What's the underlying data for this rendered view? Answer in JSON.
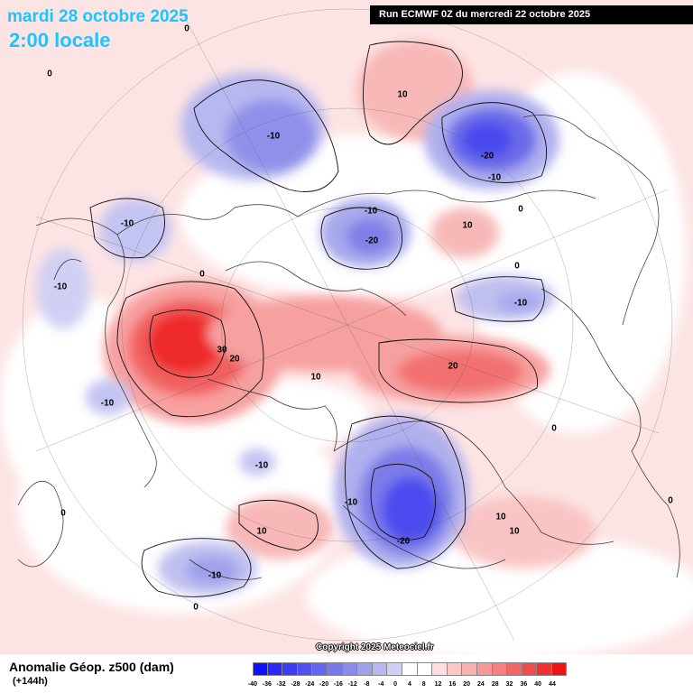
{
  "header": {
    "date_title": "mardi 28 octobre 2025",
    "time_title": "2:00 locale",
    "run_info": "Run ECMWF 0Z du mercredi 22 octobre 2025"
  },
  "footer": {
    "title": "Anomalie Géop. z500 (dam)",
    "subtitle": "(+144h)",
    "copyright": "Copyright 2025 Meteociel.fr"
  },
  "legend": {
    "ticks": [
      "-40",
      "-36",
      "-32",
      "-28",
      "-24",
      "-20",
      "-16",
      "-12",
      "-8",
      "-4",
      "0",
      "4",
      "8",
      "12",
      "16",
      "20",
      "24",
      "28",
      "32",
      "36",
      "40",
      "44"
    ],
    "colors": [
      "#1010ff",
      "#2828ff",
      "#3c3cf4",
      "#5050f0",
      "#6464ec",
      "#7878ea",
      "#8c8ce8",
      "#a0a0ea",
      "#b8b8ee",
      "#d0d0f4",
      "#ffffff",
      "#ffffff",
      "#fcdede",
      "#fac8c8",
      "#f8b0b0",
      "#f69898",
      "#f48080",
      "#f26666",
      "#f04c4c",
      "#ee3232",
      "#ec1414"
    ]
  },
  "map": {
    "contour_labels": [
      {
        "text": "0",
        "kind": "zero"
      },
      {
        "text": "0",
        "kind": "zero"
      },
      {
        "text": "10",
        "kind": "pos"
      },
      {
        "text": "-10",
        "kind": "neg"
      },
      {
        "text": "-20",
        "kind": "neg"
      },
      {
        "text": "-10",
        "kind": "neg"
      },
      {
        "text": "0",
        "kind": "zero"
      },
      {
        "text": "-10",
        "kind": "neg"
      },
      {
        "text": "-10",
        "kind": "neg"
      },
      {
        "text": "-20",
        "kind": "neg"
      },
      {
        "text": "10",
        "kind": "pos"
      },
      {
        "text": "0",
        "kind": "zero"
      },
      {
        "text": "-10",
        "kind": "neg"
      },
      {
        "text": "0",
        "kind": "zero"
      },
      {
        "text": "-10",
        "kind": "neg"
      },
      {
        "text": "30",
        "kind": "pos"
      },
      {
        "text": "20",
        "kind": "pos"
      },
      {
        "text": "10",
        "kind": "pos"
      },
      {
        "text": "20",
        "kind": "pos"
      },
      {
        "text": "-10",
        "kind": "neg"
      },
      {
        "text": "0",
        "kind": "zero"
      },
      {
        "text": "-10",
        "kind": "neg"
      },
      {
        "text": "-10",
        "kind": "neg"
      },
      {
        "text": "0",
        "kind": "zero"
      },
      {
        "text": "-20",
        "kind": "neg"
      },
      {
        "text": "10",
        "kind": "pos"
      },
      {
        "text": "10",
        "kind": "pos"
      },
      {
        "text": "10",
        "kind": "pos"
      },
      {
        "text": "0",
        "kind": "zero"
      },
      {
        "text": "-10",
        "kind": "neg"
      },
      {
        "text": "0",
        "kind": "zero"
      }
    ]
  }
}
